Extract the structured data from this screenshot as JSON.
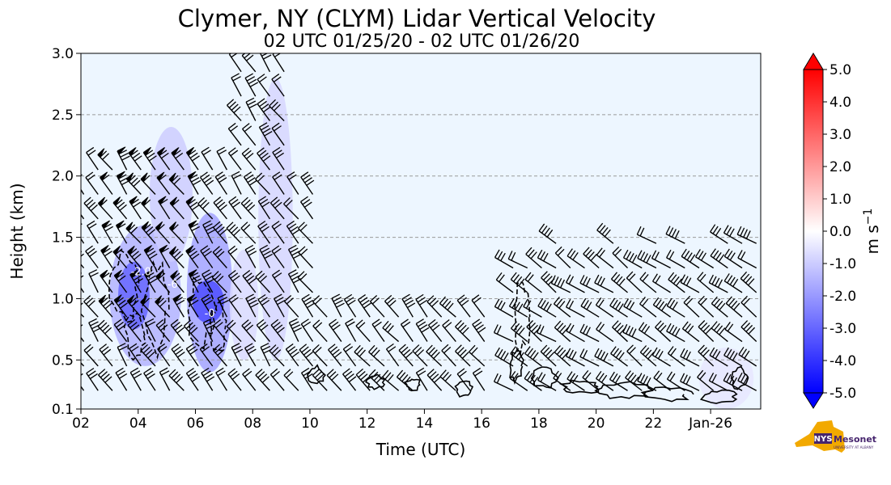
{
  "chart_data": {
    "type": "heatmap",
    "title": "Clymer, NY (CLYM) Lidar Vertical Velocity",
    "subtitle": "02 UTC 01/25/20 - 02 UTC 01/26/20",
    "xlabel": "Time (UTC)",
    "ylabel": "Height (km)",
    "x_ticks": [
      {
        "hour": 2,
        "label": "02"
      },
      {
        "hour": 4,
        "label": "04"
      },
      {
        "hour": 6,
        "label": "06"
      },
      {
        "hour": 8,
        "label": "08"
      },
      {
        "hour": 10,
        "label": "10"
      },
      {
        "hour": 12,
        "label": "12"
      },
      {
        "hour": 14,
        "label": "14"
      },
      {
        "hour": 16,
        "label": "16"
      },
      {
        "hour": 18,
        "label": "18"
      },
      {
        "hour": 20,
        "label": "20"
      },
      {
        "hour": 22,
        "label": "22"
      },
      {
        "hour": 24,
        "label": "Jan-26"
      }
    ],
    "xlim": [
      2,
      25.75
    ],
    "y_ticks": [
      {
        "value": 0.1,
        "label": "0.1"
      },
      {
        "value": 0.5,
        "label": "0.5"
      },
      {
        "value": 1.0,
        "label": "1.0"
      },
      {
        "value": 1.5,
        "label": "1.5"
      },
      {
        "value": 2.0,
        "label": "2.0"
      },
      {
        "value": 2.5,
        "label": "2.5"
      },
      {
        "value": 3.0,
        "label": "3.0"
      }
    ],
    "ylim": [
      0.1,
      3.0
    ],
    "grid": {
      "y": true,
      "x": false
    },
    "colorbar": {
      "label": "m s",
      "label_exponent": "−1",
      "range": [
        -5.0,
        5.0
      ],
      "extend": "both",
      "ticks": [
        "5.0",
        "4.0",
        "3.0",
        "2.0",
        "1.0",
        "0.0",
        "-1.0",
        "-2.0",
        "-3.0",
        "-4.0",
        "-5.0"
      ],
      "colors": {
        "positive": "#ff0000",
        "zero": "#ffffff",
        "negative": "#0000ff"
      }
    },
    "downdraft_regions": [
      {
        "t0": 3.0,
        "t1": 5.5,
        "h0": 0.45,
        "h1": 1.6,
        "w": -1.5
      },
      {
        "t0": 3.3,
        "t1": 4.4,
        "h0": 0.75,
        "h1": 1.3,
        "w": -3.0
      },
      {
        "t0": 4.4,
        "t1": 5.9,
        "h0": 1.3,
        "h1": 2.4,
        "w": -1.0
      },
      {
        "t0": 5.7,
        "t1": 7.3,
        "h0": 0.4,
        "h1": 1.7,
        "w": -1.8
      },
      {
        "t0": 5.9,
        "t1": 7.0,
        "h0": 0.8,
        "h1": 1.15,
        "w": -3.5
      },
      {
        "t0": 8.2,
        "t1": 9.4,
        "h0": 0.5,
        "h1": 2.8,
        "w": -0.8
      },
      {
        "t0": 7.2,
        "t1": 8.2,
        "h0": 0.5,
        "h1": 1.4,
        "w": -0.7
      },
      {
        "t0": 23.6,
        "t1": 25.5,
        "h0": 0.1,
        "h1": 0.6,
        "w": -0.5
      }
    ],
    "contour_labels": [
      {
        "t": 4.1,
        "h": 1.19,
        "text": "-2.0"
      },
      {
        "t": 5.2,
        "h": 1.09,
        "text": "-6"
      },
      {
        "t": 6.5,
        "h": 0.85,
        "text": "-0"
      }
    ],
    "wind_barb_rows_km": [
      0.25,
      0.45,
      0.65,
      0.85,
      1.05,
      1.25,
      1.45,
      1.65,
      1.85,
      2.05,
      2.25,
      2.45,
      2.65,
      2.85
    ],
    "wind_barb_hours": [
      2.1,
      2.6,
      3.1,
      3.6,
      4.1,
      4.6,
      5.1,
      5.6,
      6.1,
      6.6,
      7.1,
      7.6,
      8.1,
      8.6,
      9.1,
      9.6,
      10.1,
      10.6,
      11.1,
      11.6,
      12.1,
      12.6,
      13.1,
      13.6,
      14.1,
      14.6,
      15.1,
      15.6,
      16.1,
      17.1,
      17.6,
      18.1,
      18.6,
      19.1,
      19.6,
      20.1,
      20.6,
      21.1,
      21.6,
      22.1,
      22.6,
      23.1,
      23.6,
      24.1,
      24.6,
      25.1,
      25.6
    ]
  },
  "logo": {
    "brand": "NYS",
    "name": "Mesonet",
    "org": "UNIVERSITY AT ALBANY"
  }
}
